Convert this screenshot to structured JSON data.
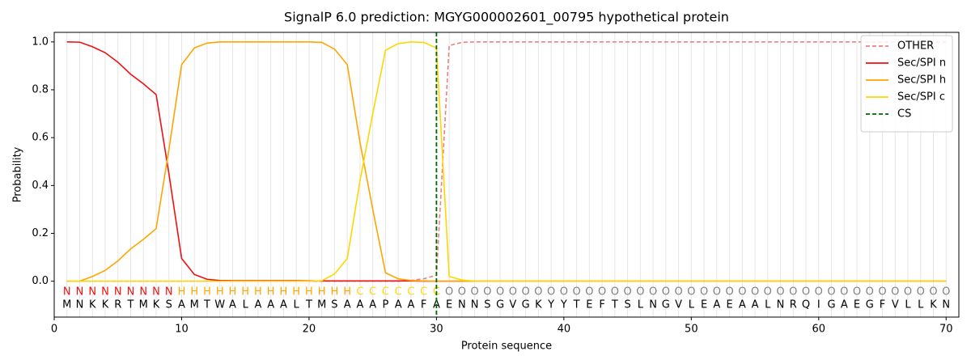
{
  "chart_data": {
    "type": "line",
    "title": "SignalP 6.0 prediction: MGYG000002601_00795 hypothetical protein",
    "xlabel": "Protein sequence",
    "ylabel": "Probability",
    "x": [
      1,
      2,
      3,
      4,
      5,
      6,
      7,
      8,
      9,
      10,
      11,
      12,
      13,
      14,
      15,
      16,
      17,
      18,
      19,
      20,
      21,
      22,
      23,
      24,
      25,
      26,
      27,
      28,
      29,
      30,
      31,
      32,
      33,
      34,
      35,
      36,
      37,
      38,
      39,
      40,
      41,
      42,
      43,
      44,
      45,
      46,
      47,
      48,
      49,
      50,
      51,
      52,
      53,
      54,
      55,
      56,
      57,
      58,
      59,
      60,
      61,
      62,
      63,
      64,
      65,
      66,
      67,
      68,
      69,
      70
    ],
    "xlim": [
      0,
      71
    ],
    "ylim": [
      -0.15,
      1.04
    ],
    "xticks": [
      0,
      10,
      20,
      30,
      40,
      50,
      60,
      70
    ],
    "yticks": [
      {
        "value": 0,
        "label": "0.0"
      },
      {
        "value": 0.2,
        "label": "0.2"
      },
      {
        "value": 0.4,
        "label": "0.4"
      },
      {
        "value": 0.6,
        "label": "0.6"
      },
      {
        "value": 0.8,
        "label": "0.8"
      },
      {
        "value": 1,
        "label": "1.0"
      }
    ],
    "grid": true,
    "legend": "upper right",
    "series": [
      {
        "name": "OTHER",
        "color": "#f08080",
        "dashed": true,
        "values": [
          0,
          0,
          0,
          0,
          0,
          0,
          0,
          0,
          0,
          0,
          0,
          0,
          0,
          0,
          0,
          0,
          0,
          0,
          0,
          0,
          0,
          0,
          0,
          0,
          0,
          0,
          0,
          0.003,
          0.01,
          0.025,
          0.985,
          0.998,
          1,
          1,
          1,
          1,
          1,
          1,
          1,
          1,
          1,
          1,
          1,
          1,
          1,
          1,
          1,
          1,
          1,
          1,
          1,
          1,
          1,
          1,
          1,
          1,
          1,
          1,
          1,
          1,
          1,
          1,
          1,
          1,
          1,
          1,
          1,
          1,
          1,
          1
        ]
      },
      {
        "name": "Sec/SPI n",
        "color": "#ee1111",
        "dashed": false,
        "values": [
          1,
          0.999,
          0.98,
          0.955,
          0.915,
          0.865,
          0.825,
          0.78,
          0.45,
          0.095,
          0.028,
          0.008,
          0.003,
          0.002,
          0.002,
          0.002,
          0.002,
          0.002,
          0.002,
          0.001,
          0.001,
          0.001,
          0.001,
          0.001,
          0.001,
          0.001,
          0.001,
          0.001,
          0,
          0,
          0,
          0,
          0,
          0,
          0,
          0,
          0,
          0,
          0,
          0,
          0,
          0,
          0,
          0,
          0,
          0,
          0,
          0,
          0,
          0,
          0,
          0,
          0,
          0,
          0,
          0,
          0,
          0,
          0,
          0,
          0,
          0,
          0,
          0,
          0,
          0,
          0,
          0,
          0,
          0
        ]
      },
      {
        "name": "Sec/SPI h",
        "color": "#ffa500",
        "dashed": false,
        "values": [
          0,
          0,
          0.02,
          0.045,
          0.085,
          0.135,
          0.175,
          0.22,
          0.55,
          0.905,
          0.975,
          0.995,
          1,
          1,
          1,
          1,
          1,
          1,
          1,
          1,
          0.998,
          0.97,
          0.905,
          0.58,
          0.3,
          0.035,
          0.01,
          0.003,
          0.001,
          0,
          0,
          0,
          0,
          0,
          0,
          0,
          0,
          0,
          0,
          0,
          0,
          0,
          0,
          0,
          0,
          0,
          0,
          0,
          0,
          0,
          0,
          0,
          0,
          0,
          0,
          0,
          0,
          0,
          0,
          0,
          0,
          0,
          0,
          0,
          0,
          0,
          0,
          0,
          0,
          0
        ]
      },
      {
        "name": "Sec/SPI c",
        "color": "#ffd700",
        "dashed": false,
        "values": [
          0,
          0,
          0,
          0,
          0,
          0,
          0,
          0,
          0,
          0,
          0,
          0,
          0,
          0,
          0,
          0,
          0,
          0,
          0,
          0,
          0.002,
          0.03,
          0.095,
          0.42,
          0.7,
          0.965,
          0.993,
          1,
          0.998,
          0.975,
          0.02,
          0.005,
          0,
          0,
          0,
          0,
          0,
          0,
          0,
          0,
          0,
          0,
          0,
          0,
          0,
          0,
          0,
          0,
          0,
          0,
          0,
          0,
          0,
          0,
          0,
          0,
          0,
          0,
          0,
          0,
          0,
          0,
          0,
          0,
          0,
          0,
          0,
          0,
          0,
          0
        ]
      }
    ],
    "cs": {
      "name": "CS",
      "x": 30,
      "color": "#006400"
    },
    "region_labels": [
      "N",
      "N",
      "N",
      "N",
      "N",
      "N",
      "N",
      "N",
      "N",
      "H",
      "H",
      "H",
      "H",
      "H",
      "H",
      "H",
      "H",
      "H",
      "H",
      "H",
      "H",
      "H",
      "H",
      "C",
      "C",
      "C",
      "C",
      "C",
      "C",
      "C",
      "O",
      "O",
      "O",
      "O",
      "O",
      "O",
      "O",
      "O",
      "O",
      "O",
      "O",
      "O",
      "O",
      "O",
      "O",
      "O",
      "O",
      "O",
      "O",
      "O",
      "O",
      "O",
      "O",
      "O",
      "O",
      "O",
      "O",
      "O",
      "O",
      "O",
      "O",
      "O",
      "O",
      "O",
      "O",
      "O",
      "O",
      "O",
      "O",
      "O"
    ],
    "region_colors": {
      "N": "#ee1111",
      "H": "#ffa500",
      "C": "#ffd700",
      "O": "#808080"
    },
    "residues": [
      "M",
      "N",
      "K",
      "K",
      "R",
      "T",
      "M",
      "K",
      "S",
      "A",
      "M",
      "T",
      "W",
      "A",
      "L",
      "A",
      "A",
      "A",
      "L",
      "T",
      "M",
      "S",
      "A",
      "A",
      "A",
      "P",
      "A",
      "A",
      "F",
      "A",
      "E",
      "N",
      "N",
      "S",
      "G",
      "V",
      "G",
      "K",
      "Y",
      "Y",
      "T",
      "E",
      "F",
      "T",
      "S",
      "L",
      "N",
      "G",
      "V",
      "L",
      "E",
      "A",
      "E",
      "A",
      "A",
      "L",
      "N",
      "R",
      "Q",
      "I",
      "G",
      "A",
      "E",
      "G",
      "F",
      "V",
      "L",
      "L",
      "K",
      "N"
    ]
  }
}
